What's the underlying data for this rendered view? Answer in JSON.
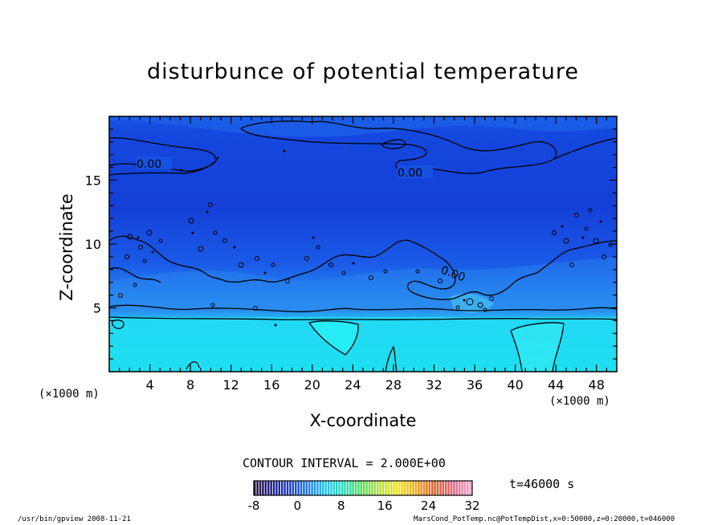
{
  "chart_data": {
    "type": "heatmap",
    "title": "disturbunce of potential temperature",
    "xlabel": "X-coordinate",
    "ylabel": "Z-coordinate",
    "x_unit": "(×1000 m)",
    "y_unit": "(×1000 m)",
    "xlim": [
      0,
      50
    ],
    "ylim": [
      0,
      20
    ],
    "x_ticks": [
      4,
      8,
      12,
      16,
      20,
      24,
      28,
      32,
      36,
      40,
      44,
      48
    ],
    "y_ticks": [
      5,
      10,
      15
    ],
    "contour_interval": "CONTOUR INTERVAL = 2.000E+00",
    "contour_labels": [
      "0.00",
      "0.00",
      "0.00"
    ],
    "colorbar": {
      "min": -8,
      "max": 32,
      "ticks": [
        -8,
        0,
        8,
        16,
        24,
        32
      ],
      "colors": [
        "#2a0a3d",
        "#1c1e8c",
        "#1a3ed6",
        "#1f7bef",
        "#22c8f0",
        "#1fe0b0",
        "#4fe04a",
        "#b6e030",
        "#efe02a",
        "#f0a020",
        "#e65a1e",
        "#e85a78",
        "#f0a0c8"
      ]
    },
    "field_levels": [
      {
        "z_range": [
          0,
          4.5
        ],
        "value": 4,
        "color": "#1ee0f2"
      },
      {
        "z_range": [
          4.5,
          9
        ],
        "value": 1,
        "color": "#1f7bef"
      },
      {
        "z_range": [
          9,
          20
        ],
        "value": 0,
        "color": "#1553e4"
      }
    ],
    "grid": false
  },
  "time": "t=46000 s",
  "footer": {
    "left": "/usr/bin/gpview   2008-11-21",
    "right": "MarsCond_PotTemp.nc@PotTempDist,x=0:50000,z=0:20000,t=046000"
  }
}
